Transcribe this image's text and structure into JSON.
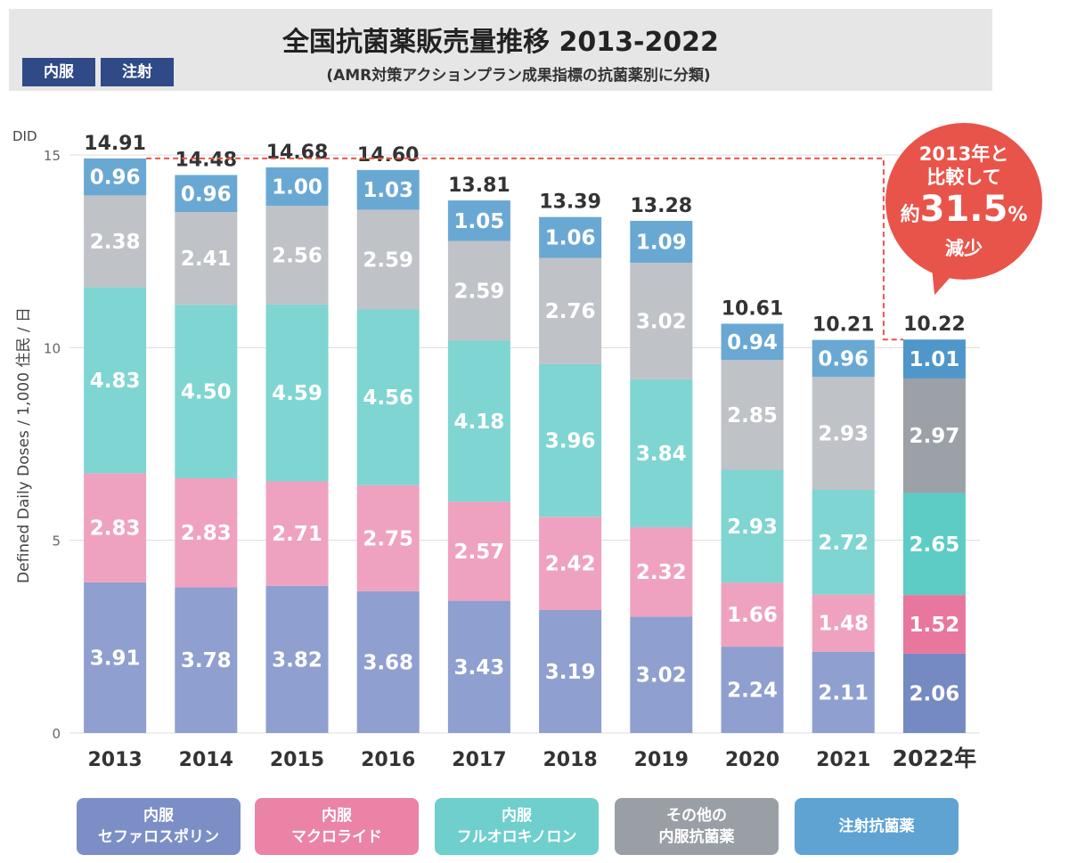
{
  "header": {
    "title": "全国抗菌薬販売量推移 2013-2022",
    "subtitle": "(AMR対策アクションプラン成果指標の抗菌薬別に分類)",
    "badge_oral": "内服",
    "badge_injection": "注射"
  },
  "callout": {
    "line1": "2013年と",
    "line2": "比較して",
    "prefix": "約",
    "value": "31.5",
    "unit": "%",
    "line4": "減少"
  },
  "legend": [
    {
      "line1": "内服",
      "line2": "セファロスポリン",
      "color": "#7b8ec6"
    },
    {
      "line1": "内服",
      "line2": "マクロライド",
      "color": "#ea83a6"
    },
    {
      "line1": "内服",
      "line2": "フルオロキノロン",
      "color": "#6fcfcc"
    },
    {
      "line1": "その他の",
      "line2": "内服抗菌薬",
      "color": "#9a9fa5"
    },
    {
      "line1": "注射抗菌薬",
      "line2": "",
      "color": "#5fa3d3"
    }
  ],
  "chart_data": {
    "type": "bar",
    "stacked": true,
    "title": "全国抗菌薬販売量推移 2013-2022",
    "ylabel": "Defined Daily Doses / 1,000 住民 / 日",
    "yunit": "DID",
    "ylim": [
      0,
      15
    ],
    "yticks": [
      "0",
      "5",
      "10",
      "15"
    ],
    "categories": [
      "2013",
      "2014",
      "2015",
      "2016",
      "2017",
      "2018",
      "2019",
      "2020",
      "2021",
      "2022年"
    ],
    "totals": [
      "14.91",
      "14.48",
      "14.68",
      "14.60",
      "13.81",
      "13.39",
      "13.28",
      "10.61",
      "10.21",
      "10.22"
    ],
    "series": [
      {
        "name": "内服 セファロスポリン",
        "values": [
          3.91,
          3.78,
          3.82,
          3.68,
          3.43,
          3.19,
          3.02,
          2.24,
          2.11,
          2.06
        ],
        "labels": [
          "3.91",
          "3.78",
          "3.82",
          "3.68",
          "3.43",
          "3.19",
          "3.02",
          "2.24",
          "2.11",
          "2.06"
        ],
        "color": "#8f9fcf",
        "highlight_color": "#7589c2"
      },
      {
        "name": "内服 マクロライド",
        "values": [
          2.83,
          2.83,
          2.71,
          2.75,
          2.57,
          2.42,
          2.32,
          1.66,
          1.48,
          1.52
        ],
        "labels": [
          "2.83",
          "2.83",
          "2.71",
          "2.75",
          "2.57",
          "2.42",
          "2.32",
          "1.66",
          "1.48",
          "1.52"
        ],
        "color": "#efa2bf",
        "highlight_color": "#e9769d"
      },
      {
        "name": "内服 フルオロキノロン",
        "values": [
          4.83,
          4.5,
          4.59,
          4.56,
          4.18,
          3.96,
          3.84,
          2.93,
          2.72,
          2.65
        ],
        "labels": [
          "4.83",
          "4.50",
          "4.59",
          "4.56",
          "4.18",
          "3.96",
          "3.84",
          "2.93",
          "2.72",
          "2.65"
        ],
        "color": "#7fd5d1",
        "highlight_color": "#5cccc5"
      },
      {
        "name": "その他の 内服抗菌薬",
        "values": [
          2.38,
          2.41,
          2.56,
          2.59,
          2.59,
          2.76,
          3.02,
          2.85,
          2.93,
          2.97
        ],
        "labels": [
          "2.38",
          "2.41",
          "2.56",
          "2.59",
          "2.59",
          "2.76",
          "3.02",
          "2.85",
          "2.93",
          "2.97"
        ],
        "color": "#bfc2c7",
        "highlight_color": "#9ca1a8"
      },
      {
        "name": "注射抗菌薬",
        "values": [
          0.96,
          0.96,
          1.0,
          1.03,
          1.05,
          1.06,
          1.09,
          0.94,
          0.96,
          1.01
        ],
        "labels": [
          "0.96",
          "0.96",
          "1.00",
          "1.03",
          "1.05",
          "1.06",
          "1.09",
          "0.94",
          "0.96",
          "1.01"
        ],
        "color": "#6aa8d4",
        "highlight_color": "#4f96cb"
      }
    ],
    "highlight_category": "2022年",
    "reference_line": {
      "value": 14.91,
      "style": "dashed",
      "color": "#e9544a"
    },
    "grid": true
  }
}
